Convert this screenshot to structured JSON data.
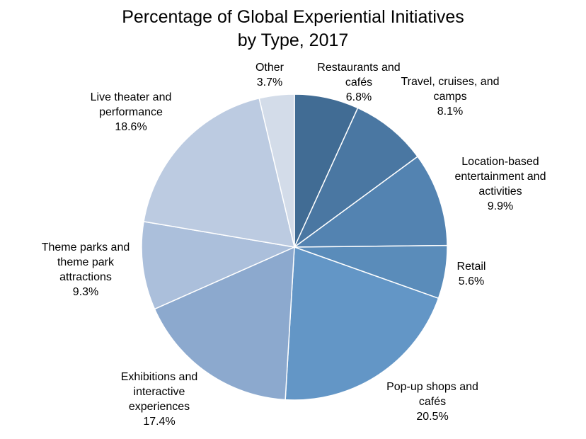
{
  "chart_data": {
    "type": "pie",
    "title_lines": [
      "Percentage of Global Experiential Initiatives",
      "by Type, 2017"
    ],
    "slices": [
      {
        "label_lines": [
          "Restaurants and",
          "cafés"
        ],
        "value_text": "6.8%",
        "value": 6.8,
        "color": "#416c94"
      },
      {
        "label_lines": [
          "Travel, cruises, and",
          "camps"
        ],
        "value_text": "8.1%",
        "value": 8.1,
        "color": "#4a77a2"
      },
      {
        "label_lines": [
          "Location-based",
          "entertainment and",
          "activities"
        ],
        "value_text": "9.9%",
        "value": 9.9,
        "color": "#5383b1"
      },
      {
        "label_lines": [
          "Retail"
        ],
        "value_text": "5.6%",
        "value": 5.6,
        "color": "#5a8cba"
      },
      {
        "label_lines": [
          "Pop-up shops and",
          "cafés"
        ],
        "value_text": "20.5%",
        "value": 20.5,
        "color": "#6396c6"
      },
      {
        "label_lines": [
          "Exhibitions and",
          "interactive",
          "experiences"
        ],
        "value_text": "17.4%",
        "value": 17.4,
        "color": "#8ca9ce"
      },
      {
        "label_lines": [
          "Theme parks and",
          "theme park",
          "attractions"
        ],
        "value_text": "9.3%",
        "value": 9.3,
        "color": "#abbfdb"
      },
      {
        "label_lines": [
          "Live theater and",
          "performance"
        ],
        "value_text": "18.6%",
        "value": 18.6,
        "color": "#bccbe1"
      },
      {
        "label_lines": [
          "Other"
        ],
        "value_text": "3.7%",
        "value": 3.7,
        "color": "#d3dce9"
      }
    ]
  }
}
